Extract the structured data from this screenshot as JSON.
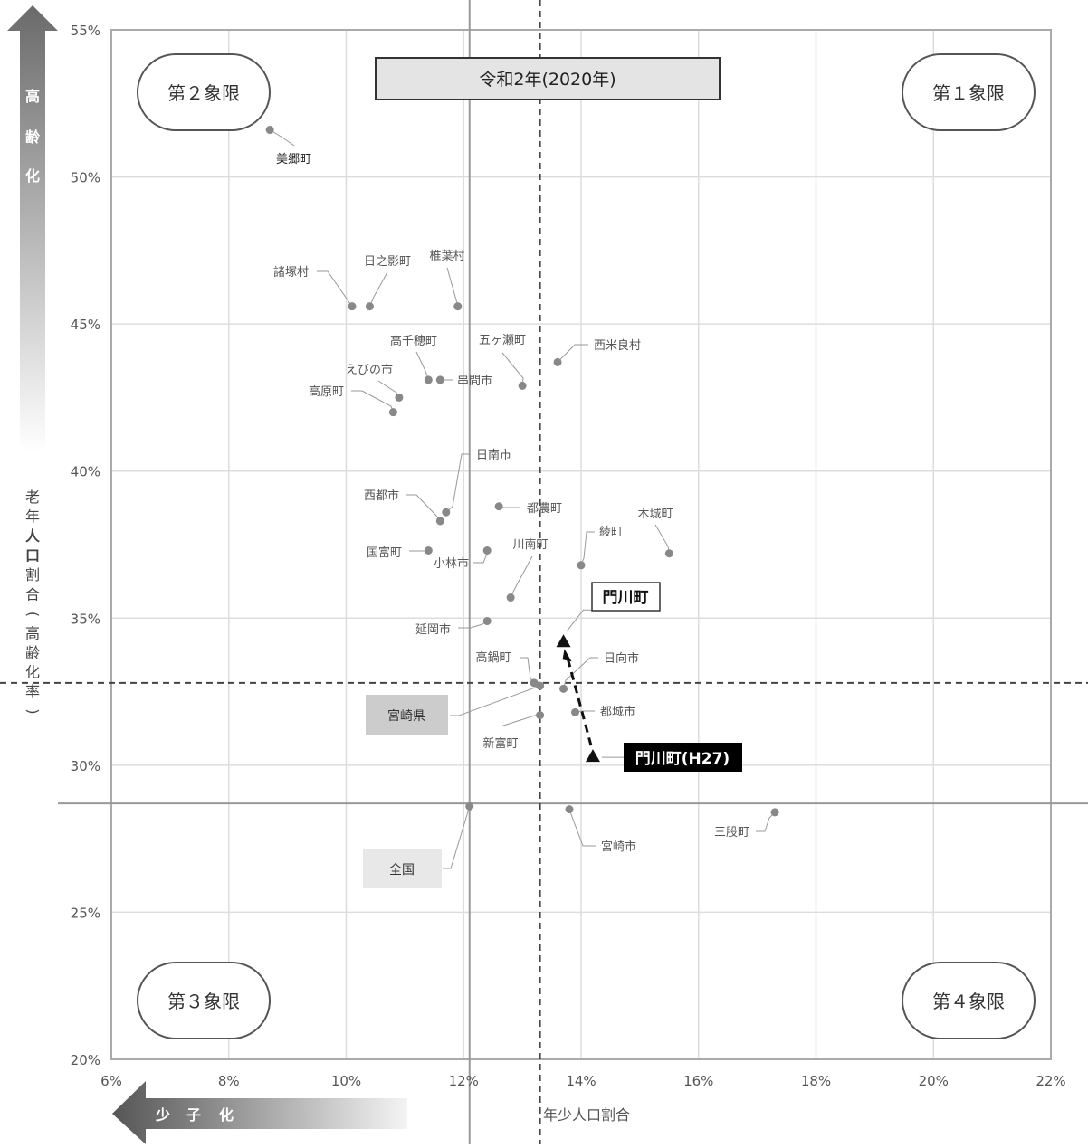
{
  "chart_data": {
    "type": "scatter",
    "title": "令和2年(2020年)",
    "xlabel": "年少人口割合",
    "ylabel": "老年人口割合(高齢化率)",
    "x_tick_labels": [
      "6%",
      "8%",
      "10%",
      "12%",
      "14%",
      "16%",
      "18%",
      "20%",
      "22%"
    ],
    "y_tick_labels": [
      "20%",
      "25%",
      "30%",
      "35%",
      "40%",
      "45%",
      "50%",
      "55%"
    ],
    "xlim": [
      6,
      22
    ],
    "ylim": [
      20,
      55
    ],
    "grid": true,
    "points": [
      {
        "name": "美郷町",
        "x": 8.7,
        "y": 51.6
      },
      {
        "name": "諸塚村",
        "x": 10.1,
        "y": 45.6
      },
      {
        "name": "日之影町",
        "x": 10.4,
        "y": 45.6
      },
      {
        "name": "椎葉村",
        "x": 11.9,
        "y": 45.6
      },
      {
        "name": "西米良村",
        "x": 13.6,
        "y": 43.7
      },
      {
        "name": "高千穂町",
        "x": 11.4,
        "y": 43.1
      },
      {
        "name": "串間市",
        "x": 11.6,
        "y": 43.1
      },
      {
        "name": "五ヶ瀬町",
        "x": 13.0,
        "y": 42.9
      },
      {
        "name": "えびの市",
        "x": 10.9,
        "y": 42.5
      },
      {
        "name": "高原町",
        "x": 10.8,
        "y": 42.0
      },
      {
        "name": "日南市",
        "x": 11.7,
        "y": 38.6
      },
      {
        "name": "都農町",
        "x": 12.6,
        "y": 38.8
      },
      {
        "name": "西都市",
        "x": 11.6,
        "y": 38.3
      },
      {
        "name": "木城町",
        "x": 15.5,
        "y": 37.2
      },
      {
        "name": "国富町",
        "x": 11.4,
        "y": 37.3
      },
      {
        "name": "小林市",
        "x": 12.4,
        "y": 37.3
      },
      {
        "name": "綾町",
        "x": 14.0,
        "y": 36.8
      },
      {
        "name": "川南町",
        "x": 12.8,
        "y": 35.7
      },
      {
        "name": "延岡市",
        "x": 12.4,
        "y": 34.9
      },
      {
        "name": "高鍋町",
        "x": 13.2,
        "y": 32.8
      },
      {
        "name": "宮崎県",
        "x": 13.3,
        "y": 32.7
      },
      {
        "name": "日向市",
        "x": 13.7,
        "y": 32.6
      },
      {
        "name": "都城市",
        "x": 13.9,
        "y": 31.8
      },
      {
        "name": "新富町",
        "x": 13.3,
        "y": 31.7
      },
      {
        "name": "全国",
        "x": 12.1,
        "y": 28.6
      },
      {
        "name": "宮崎市",
        "x": 13.8,
        "y": 28.5
      },
      {
        "name": "三股町",
        "x": 17.3,
        "y": 28.4
      }
    ],
    "highlight": {
      "current": {
        "name": "門川町",
        "x": 13.7,
        "y": 34.2
      },
      "previous": {
        "name": "門川町(H27)",
        "x": 14.2,
        "y": 30.3
      }
    },
    "reference_lines": {
      "x_dashed": 13.3,
      "y_dashed": 32.8,
      "x_solid": 12.1,
      "y_solid": 28.7
    },
    "quadrants": {
      "q1": "第１象限",
      "q2": "第２象限",
      "q3": "第３象限",
      "q4": "第４象限"
    },
    "arrows": {
      "vertical_label": "高齢化",
      "horizontal_label": "少子化"
    }
  }
}
